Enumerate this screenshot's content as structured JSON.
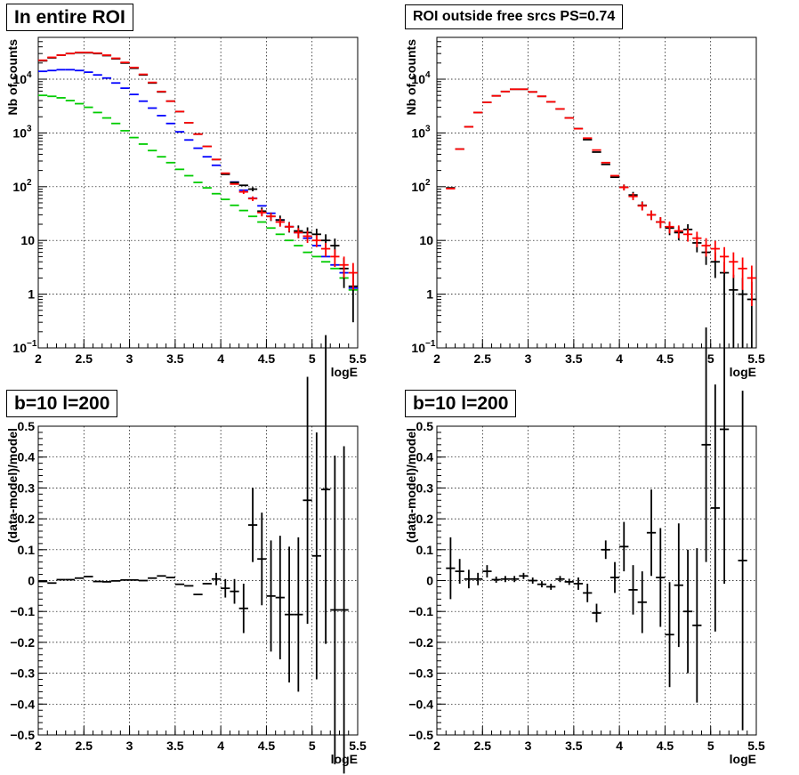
{
  "colors": {
    "data": "#000000",
    "total_model": "#ff0000",
    "blue_component": "#0000ff",
    "green_component": "#00cc00"
  },
  "chart_data": [
    {
      "id": "tl",
      "type": "scatter",
      "title": "In entire ROI",
      "xlabel": "logE",
      "ylabel": "Nb of counts",
      "xlim": [
        2,
        5.5
      ],
      "ylim": [
        0.1,
        60000
      ],
      "yscale": "log",
      "grid": true,
      "bin_width": 0.1,
      "x_ticks": [
        "2",
        "2.5",
        "3",
        "3.5",
        "4",
        "4.5",
        "5",
        "5.5"
      ],
      "y_ticks": [
        {
          "value": 0.1,
          "base": "10",
          "exp": "−1"
        },
        {
          "value": 1,
          "label": "1"
        },
        {
          "value": 10,
          "label": "10"
        },
        {
          "value": 100,
          "base": "10",
          "exp": "2"
        },
        {
          "value": 1000,
          "base": "10",
          "exp": "3"
        },
        {
          "value": 10000,
          "base": "10",
          "exp": "4"
        }
      ],
      "series": [
        {
          "color": "#00cc00",
          "x": [
            2.05,
            2.15,
            2.25,
            2.35,
            2.45,
            2.55,
            2.65,
            2.75,
            2.85,
            2.95,
            3.05,
            3.15,
            3.25,
            3.35,
            3.45,
            3.55,
            3.65,
            3.75,
            3.85,
            3.95,
            4.05,
            4.15,
            4.25,
            4.35,
            4.45,
            4.55,
            4.65,
            4.75,
            4.85,
            4.95,
            5.05,
            5.15,
            5.25,
            5.35,
            5.45
          ],
          "y": [
            5000,
            4800,
            4500,
            4000,
            3500,
            3000,
            2400,
            1900,
            1500,
            1100,
            820,
            620,
            470,
            360,
            280,
            210,
            160,
            120,
            95,
            74,
            58,
            45,
            36,
            28,
            22,
            17,
            13,
            10,
            8,
            6,
            5,
            4,
            3,
            2,
            1.2
          ],
          "err": [
            0,
            0,
            0,
            0,
            0,
            0,
            0,
            0,
            0,
            0,
            0,
            0,
            0,
            0,
            0,
            0,
            0,
            0,
            0,
            0,
            0,
            0,
            0,
            0,
            0,
            0,
            0,
            0,
            0,
            0,
            0,
            0,
            0,
            0,
            0
          ]
        },
        {
          "color": "#0000ff",
          "x": [
            2.05,
            2.15,
            2.25,
            2.35,
            2.45,
            2.55,
            2.65,
            2.75,
            2.85,
            2.95,
            3.05,
            3.15,
            3.25,
            3.35,
            3.45,
            3.55,
            3.65,
            3.75,
            3.85,
            3.95,
            4.05,
            4.15,
            4.25,
            4.35,
            4.45,
            4.55,
            4.65,
            4.75,
            4.85,
            4.95,
            5.05,
            5.15,
            5.25,
            5.35,
            5.45
          ],
          "y": [
            14000,
            14500,
            15000,
            15000,
            14500,
            13500,
            12000,
            10500,
            8500,
            6800,
            5200,
            3900,
            2900,
            2100,
            1500,
            1050,
            740,
            520,
            360,
            250,
            175,
            122,
            86,
            61,
            44,
            32,
            24,
            18,
            14,
            11,
            8,
            5,
            3.5,
            2.5,
            1.3
          ],
          "err": [
            0,
            0,
            0,
            0,
            0,
            0,
            0,
            0,
            0,
            0,
            0,
            0,
            0,
            0,
            0,
            0,
            0,
            0,
            0,
            0,
            0,
            0,
            0,
            0,
            0,
            0,
            0,
            0,
            0,
            0,
            0,
            0,
            0,
            0,
            0
          ]
        },
        {
          "color": "#000000",
          "x": [
            2.05,
            2.15,
            2.25,
            2.35,
            2.45,
            2.55,
            2.65,
            2.75,
            2.85,
            2.95,
            3.05,
            3.15,
            3.25,
            3.35,
            3.45,
            3.55,
            3.65,
            3.75,
            3.85,
            3.95,
            4.05,
            4.15,
            4.25,
            4.35,
            4.45,
            4.55,
            4.65,
            4.75,
            4.85,
            4.95,
            5.05,
            5.15,
            5.25,
            5.35,
            5.45
          ],
          "y": [
            22000,
            25000,
            28000,
            30000,
            31000,
            31000,
            30000,
            27500,
            24000,
            20000,
            16000,
            12000,
            8500,
            5800,
            3900,
            2500,
            1550,
            950,
            560,
            320,
            170,
            120,
            106,
            90,
            35,
            28,
            24,
            18,
            15,
            14,
            13,
            10,
            8,
            3,
            1.4
          ],
          "err": [
            0,
            0,
            0,
            0,
            0,
            0,
            0,
            0,
            0,
            0,
            0,
            0,
            0,
            0,
            0,
            0,
            0,
            0,
            0,
            0,
            0,
            0,
            0,
            8,
            6,
            5,
            5,
            4,
            4,
            3.5,
            3.5,
            3,
            2.8,
            1.7,
            1.1
          ]
        },
        {
          "color": "#ff0000",
          "x": [
            2.05,
            2.15,
            2.25,
            2.35,
            2.45,
            2.55,
            2.65,
            2.75,
            2.85,
            2.95,
            3.05,
            3.15,
            3.25,
            3.35,
            3.45,
            3.55,
            3.65,
            3.75,
            3.85,
            3.95,
            4.05,
            4.15,
            4.25,
            4.35,
            4.45,
            4.55,
            4.65,
            4.75,
            4.85,
            4.95,
            5.05,
            5.15,
            5.25,
            5.35,
            5.45
          ],
          "y": [
            22500,
            25500,
            28000,
            30000,
            31500,
            31500,
            30500,
            28000,
            24500,
            20500,
            16500,
            12300,
            8700,
            5900,
            3900,
            2500,
            1550,
            950,
            560,
            320,
            178,
            112,
            80,
            60,
            33,
            28,
            22,
            18,
            14,
            12,
            10,
            7,
            5,
            3.5,
            2.5
          ],
          "err": [
            0,
            0,
            0,
            0,
            0,
            0,
            0,
            0,
            0,
            0,
            0,
            0,
            0,
            0,
            0,
            0,
            0,
            0,
            0,
            0,
            0,
            0,
            7,
            6,
            5,
            4.5,
            4,
            3.5,
            3,
            3,
            2.5,
            2,
            1.8,
            1.5,
            1.3
          ]
        }
      ]
    },
    {
      "id": "tr",
      "type": "scatter",
      "title": "ROI outside free srcs PS=0.74",
      "xlabel": "logE",
      "ylabel": "Nb of counts",
      "xlim": [
        2,
        5.5
      ],
      "ylim": [
        0.1,
        60000
      ],
      "yscale": "log",
      "grid": true,
      "bin_width": 0.1,
      "x_ticks": [
        "2",
        "2.5",
        "3",
        "3.5",
        "4",
        "4.5",
        "5",
        "5.5"
      ],
      "y_ticks": [
        {
          "value": 0.1,
          "base": "10",
          "exp": "−1"
        },
        {
          "value": 1,
          "label": "1"
        },
        {
          "value": 10,
          "label": "10"
        },
        {
          "value": 100,
          "base": "10",
          "exp": "2"
        },
        {
          "value": 1000,
          "base": "10",
          "exp": "3"
        },
        {
          "value": 10000,
          "base": "10",
          "exp": "4"
        }
      ],
      "series": [
        {
          "color": "#000000",
          "x": [
            2.15,
            2.25,
            2.35,
            2.45,
            2.55,
            2.65,
            2.75,
            2.85,
            2.95,
            3.05,
            3.15,
            3.25,
            3.35,
            3.45,
            3.55,
            3.65,
            3.75,
            3.85,
            3.95,
            4.05,
            4.15,
            4.25,
            4.35,
            4.45,
            4.55,
            4.65,
            4.75,
            4.85,
            4.95,
            5.05,
            5.15,
            5.25,
            5.35,
            5.45
          ],
          "y": [
            95,
            500,
            1300,
            2400,
            3700,
            4900,
            5900,
            6500,
            6500,
            5800,
            4800,
            3800,
            2800,
            1900,
            1200,
            750,
            440,
            260,
            150,
            98,
            70,
            45,
            30,
            22,
            17,
            14,
            16,
            9,
            6,
            4,
            2.5,
            1.2,
            1,
            0.8
          ],
          "err": [
            0,
            0,
            0,
            0,
            0,
            0,
            0,
            0,
            0,
            0,
            0,
            0,
            0,
            0,
            0,
            0,
            0,
            0,
            0,
            12,
            10,
            8,
            6,
            5,
            4.5,
            4,
            4,
            3,
            2.5,
            2,
            1.5,
            1.1,
            1,
            0.9
          ]
        },
        {
          "color": "#ff0000",
          "x": [
            2.15,
            2.25,
            2.35,
            2.45,
            2.55,
            2.65,
            2.75,
            2.85,
            2.95,
            3.05,
            3.15,
            3.25,
            3.35,
            3.45,
            3.55,
            3.65,
            3.75,
            3.85,
            3.95,
            4.05,
            4.15,
            4.25,
            4.35,
            4.45,
            4.55,
            4.65,
            4.75,
            4.85,
            4.95,
            5.05,
            5.15,
            5.25,
            5.35,
            5.45
          ],
          "y": [
            92,
            500,
            1300,
            2400,
            3700,
            4900,
            5900,
            6500,
            6500,
            5800,
            4800,
            3800,
            2800,
            1900,
            1200,
            800,
            480,
            280,
            160,
            97,
            66,
            44,
            30,
            22,
            18,
            15,
            13,
            11,
            8,
            7,
            5,
            4,
            3,
            2
          ],
          "err": [
            0,
            0,
            0,
            0,
            0,
            0,
            0,
            0,
            0,
            0,
            0,
            0,
            0,
            0,
            0,
            0,
            0,
            0,
            0,
            12,
            10,
            8,
            6,
            5,
            4.5,
            4,
            3.5,
            3.5,
            3,
            2.8,
            2.5,
            2,
            1.8,
            1.4
          ]
        }
      ]
    },
    {
      "id": "bl",
      "type": "scatter",
      "title": "b=10 l=200",
      "xlabel": "logE",
      "ylabel": "(data-model)/model",
      "xlim": [
        2,
        5.5
      ],
      "ylim": [
        -0.5,
        0.5
      ],
      "yscale": "linear",
      "grid": true,
      "bin_width": 0.1,
      "x_ticks": [
        "2",
        "2.5",
        "3",
        "3.5",
        "4",
        "4.5",
        "5",
        "5.5"
      ],
      "y_tick_labels": [
        "−0.5",
        "−0.4",
        "−0.3",
        "−0.2",
        "−0.1",
        "0",
        "0.1",
        "0.2",
        "0.3",
        "0.4",
        "0.5"
      ],
      "series": [
        {
          "color": "#000000",
          "x": [
            2.05,
            2.15,
            2.25,
            2.35,
            2.45,
            2.55,
            2.65,
            2.75,
            2.85,
            2.95,
            3.05,
            3.15,
            3.25,
            3.35,
            3.45,
            3.55,
            3.65,
            3.75,
            3.85,
            3.95,
            4.05,
            4.15,
            4.25,
            4.35,
            4.45,
            4.55,
            4.65,
            4.75,
            4.85,
            4.95,
            5.05,
            5.15,
            5.25,
            5.35
          ],
          "y": [
            -0.003,
            -0.008,
            0.003,
            0.003,
            0.008,
            0.013,
            -0.003,
            -0.004,
            -0.001,
            0.002,
            0.002,
            0.0,
            0.008,
            0.015,
            0.01,
            -0.012,
            -0.017,
            -0.045,
            -0.01,
            0.005,
            -0.025,
            -0.035,
            -0.09,
            0.18,
            0.07,
            -0.05,
            -0.055,
            -0.11,
            -0.11,
            0.26,
            0.08,
            0.295,
            -0.095,
            -0.095
          ],
          "err": [
            0,
            0,
            0,
            0,
            0,
            0,
            0,
            0,
            0,
            0,
            0,
            0,
            0,
            0,
            0,
            0,
            0,
            0,
            0,
            0.02,
            0.03,
            0.04,
            0.08,
            0.12,
            0.15,
            0.18,
            0.2,
            0.22,
            0.25,
            0.4,
            0.4,
            0.5,
            0.5,
            0.53
          ]
        }
      ]
    },
    {
      "id": "br",
      "type": "scatter",
      "title": "b=10 l=200",
      "xlabel": "logE",
      "ylabel": "(data-model)/model",
      "xlim": [
        2,
        5.5
      ],
      "ylim": [
        -0.5,
        0.5
      ],
      "yscale": "linear",
      "grid": true,
      "bin_width": 0.1,
      "x_ticks": [
        "2",
        "2.5",
        "3",
        "3.5",
        "4",
        "4.5",
        "5",
        "5.5"
      ],
      "y_tick_labels": [
        "−0.5",
        "−0.4",
        "−0.3",
        "−0.2",
        "−0.1",
        "0",
        "0.1",
        "0.2",
        "0.3",
        "0.4",
        "0.5"
      ],
      "series": [
        {
          "color": "#000000",
          "x": [
            2.15,
            2.25,
            2.35,
            2.45,
            2.55,
            2.65,
            2.75,
            2.85,
            2.95,
            3.05,
            3.15,
            3.25,
            3.35,
            3.45,
            3.55,
            3.65,
            3.75,
            3.85,
            3.95,
            4.05,
            4.15,
            4.25,
            4.35,
            4.45,
            4.55,
            4.65,
            4.75,
            4.85,
            4.95,
            5.05,
            5.15,
            5.35
          ],
          "y": [
            0.04,
            0.03,
            0.005,
            0.005,
            0.03,
            0.003,
            0.005,
            0.005,
            0.015,
            0.0,
            -0.012,
            -0.02,
            0.005,
            -0.004,
            -0.01,
            -0.04,
            -0.105,
            0.1,
            0.01,
            0.11,
            -0.03,
            -0.07,
            0.155,
            0.01,
            -0.175,
            -0.015,
            -0.1,
            -0.145,
            0.44,
            0.235,
            0.49,
            0.065
          ],
          "err": [
            0.1,
            0.04,
            0.03,
            0.02,
            0.02,
            0.01,
            0.01,
            0.01,
            0.01,
            0.01,
            0.01,
            0.01,
            0.01,
            0.01,
            0.02,
            0.03,
            0.03,
            0.03,
            0.05,
            0.08,
            0.08,
            0.1,
            0.14,
            0.16,
            0.17,
            0.2,
            0.2,
            0.25,
            0.38,
            0.4,
            0.5,
            0.55
          ]
        }
      ]
    }
  ]
}
